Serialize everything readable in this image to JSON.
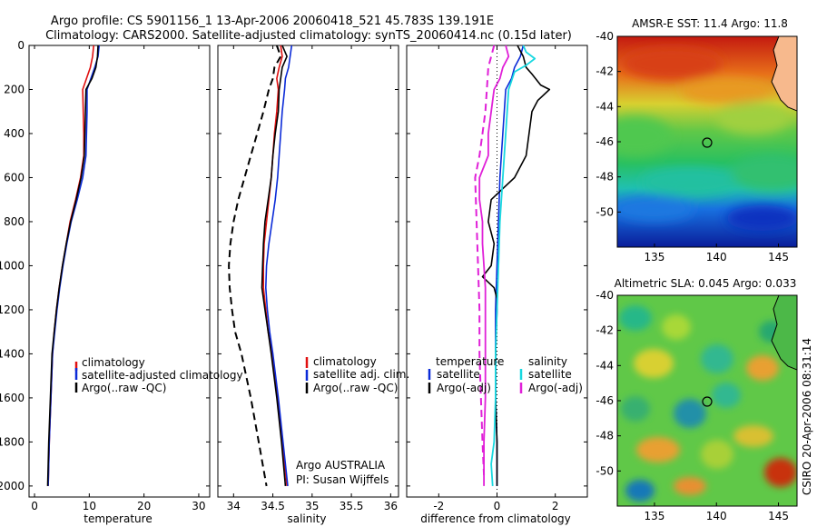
{
  "header": {
    "title_line1": "Argo profile: CS 5901156_1 13-Apr-2006 20060418_521 45.783S 139.191E",
    "title_line2": "Climatology: CARS2000. Satellite-adjusted climatology: synTS_20060414.nc (0.15d later)"
  },
  "side_label": "CSIRO 20-Apr-2006 08:31:14",
  "colors": {
    "climatology": "#e01010",
    "satellite": "#0b2bd8",
    "argo": "#000000",
    "satellite_sal": "#18d8e0",
    "argo_sal": "#e020d8"
  },
  "chart_data": [
    {
      "id": "temperature",
      "type": "line",
      "xlabel": "temperature",
      "xlim": [
        -1,
        32
      ],
      "ylim": [
        2050,
        0
      ],
      "x_ticks": [
        "0",
        "10",
        "20",
        "30"
      ],
      "y_ticks": [
        "0",
        "200",
        "400",
        "600",
        "800",
        "1000",
        "1200",
        "1400",
        "1600",
        "1800",
        "2000"
      ],
      "legend": [
        "climatology",
        "satellite-adjusted climatology",
        "Argo(..raw -QC)"
      ],
      "series": [
        {
          "name": "climatology",
          "depth": [
            0,
            50,
            100,
            150,
            200,
            300,
            400,
            500,
            600,
            700,
            800,
            900,
            1000,
            1100,
            1200,
            1300,
            1400,
            1600,
            1800,
            2000
          ],
          "values": [
            10.8,
            10.6,
            10.2,
            9.5,
            8.8,
            8.9,
            9.0,
            9.0,
            8.4,
            7.5,
            6.5,
            5.8,
            5.1,
            4.5,
            4.0,
            3.6,
            3.3,
            3.0,
            2.7,
            2.5
          ]
        },
        {
          "name": "satellite-adjusted climatology",
          "depth": [
            0,
            50,
            100,
            150,
            200,
            300,
            400,
            500,
            600,
            700,
            800,
            900,
            1000,
            1100,
            1200,
            1300,
            1400,
            1600,
            1800,
            2000
          ],
          "values": [
            11.8,
            11.6,
            11.0,
            10.3,
            9.6,
            9.6,
            9.5,
            9.4,
            8.8,
            7.8,
            6.7,
            5.9,
            5.2,
            4.6,
            4.1,
            3.7,
            3.3,
            3.0,
            2.7,
            2.5
          ]
        },
        {
          "name": "Argo(..raw -QC)",
          "depth": [
            0,
            50,
            100,
            150,
            200,
            300,
            400,
            500,
            600,
            700,
            800,
            900,
            1000,
            1100,
            1200,
            1300,
            1400,
            1600,
            1800,
            2000
          ],
          "values": [
            11.6,
            11.5,
            11.2,
            10.5,
            9.4,
            9.3,
            9.2,
            9.1,
            8.5,
            7.6,
            6.6,
            5.8,
            5.1,
            4.5,
            4.0,
            3.6,
            3.2,
            2.9,
            2.6,
            2.4
          ]
        }
      ]
    },
    {
      "id": "salinity",
      "type": "line",
      "xlabel": "salinity",
      "xlim": [
        33.8,
        36.1
      ],
      "ylim": [
        2050,
        0
      ],
      "x_ticks": [
        "34",
        "34.5",
        "35",
        "35.5",
        "36"
      ],
      "legend": [
        "climatology",
        "satellite adj. clim.",
        "Argo(..raw -QC)"
      ],
      "annotation": [
        "Argo AUSTRALIA",
        "PI: Susan Wijffels"
      ],
      "series": [
        {
          "name": "climatology",
          "depth": [
            0,
            50,
            100,
            150,
            200,
            300,
            400,
            500,
            600,
            700,
            800,
            900,
            1000,
            1100,
            1200,
            1300,
            1400,
            1600,
            1800,
            2000
          ],
          "values": [
            34.6,
            34.62,
            34.58,
            34.55,
            34.57,
            34.55,
            34.52,
            34.5,
            34.48,
            34.45,
            34.42,
            34.39,
            34.38,
            34.38,
            34.41,
            34.44,
            34.49,
            34.56,
            34.62,
            34.68
          ]
        },
        {
          "name": "satellite adj. clim.",
          "depth": [
            0,
            50,
            100,
            150,
            200,
            300,
            400,
            500,
            600,
            700,
            800,
            900,
            1000,
            1100,
            1200,
            1300,
            1400,
            1600,
            1800,
            2000
          ],
          "values": [
            34.74,
            34.72,
            34.7,
            34.66,
            34.65,
            34.62,
            34.6,
            34.58,
            34.56,
            34.53,
            34.49,
            34.45,
            34.42,
            34.41,
            34.43,
            34.46,
            34.5,
            34.57,
            34.63,
            34.69
          ]
        },
        {
          "name": "Argo(..raw -QC)",
          "depth": [
            0,
            50,
            100,
            150,
            200,
            300,
            400,
            500,
            600,
            700,
            800,
            900,
            1000,
            1100,
            1200,
            1300,
            1400,
            1600,
            1800,
            2000
          ],
          "values": [
            34.62,
            34.68,
            34.62,
            34.6,
            34.58,
            34.57,
            34.53,
            34.5,
            34.48,
            34.44,
            34.4,
            34.38,
            34.37,
            34.36,
            34.4,
            34.44,
            34.48,
            34.55,
            34.61,
            34.66
          ]
        },
        {
          "name": "Argo(-adj)",
          "depth": [
            0,
            50,
            100,
            150,
            200,
            300,
            400,
            500,
            600,
            700,
            800,
            900,
            1000,
            1100,
            1200,
            1300,
            1400,
            1600,
            1800,
            2000
          ],
          "values": [
            34.55,
            34.6,
            34.52,
            34.5,
            34.45,
            34.38,
            34.3,
            34.22,
            34.14,
            34.06,
            34.0,
            33.96,
            33.94,
            33.95,
            33.98,
            34.02,
            34.1,
            34.22,
            34.32,
            34.42
          ]
        }
      ]
    },
    {
      "id": "difference",
      "type": "line",
      "xlabel": "difference from climatology",
      "xlim": [
        -3.1,
        3.1
      ],
      "ylim": [
        2050,
        0
      ],
      "x_ticks": [
        "-2",
        "0",
        "2"
      ],
      "legend_titles": [
        "temperature",
        "salinity"
      ],
      "legend": [
        "satellite",
        "Argo(-adj)",
        "satellite",
        "Argo(-adj)"
      ],
      "series": [
        {
          "name": "temperature satellite",
          "depth": [
            0,
            50,
            100,
            150,
            200,
            400,
            600,
            800,
            1000,
            1200,
            1400,
            1600,
            1800,
            2000
          ],
          "values": [
            0.9,
            0.8,
            0.6,
            0.5,
            0.3,
            0.2,
            0.1,
            0.05,
            0.0,
            -0.05,
            -0.05,
            -0.05,
            0.0,
            0.0
          ]
        },
        {
          "name": "temperature Argo(-adj)",
          "depth": [
            0,
            50,
            100,
            130,
            180,
            200,
            250,
            300,
            400,
            500,
            600,
            650,
            700,
            800,
            900,
            1000,
            1050,
            1100,
            1150,
            1200,
            1400,
            1600,
            1800,
            2000
          ],
          "values": [
            0.7,
            0.9,
            1.0,
            1.2,
            1.5,
            1.8,
            1.4,
            1.2,
            1.1,
            1.0,
            0.6,
            0.2,
            -0.2,
            -0.3,
            -0.1,
            -0.2,
            -0.5,
            -0.1,
            0.0,
            0.0,
            -0.05,
            -0.05,
            0.0,
            0.0
          ]
        },
        {
          "name": "salinity satellite",
          "depth": [
            0,
            30,
            60,
            90,
            120,
            200,
            400,
            600,
            800,
            1000,
            1200,
            1400,
            1600,
            1800,
            1900,
            2000
          ],
          "values": [
            0.9,
            1.0,
            1.3,
            1.0,
            0.6,
            0.4,
            0.3,
            0.2,
            0.1,
            0.05,
            0.0,
            -0.05,
            -0.05,
            -0.1,
            -0.2,
            -0.15
          ]
        },
        {
          "name": "salinity Argo(-adj)",
          "depth": [
            0,
            50,
            100,
            150,
            200,
            300,
            400,
            500,
            600,
            700,
            800,
            900,
            1000,
            1100,
            1200,
            1300,
            1400,
            1600,
            1800,
            2000
          ],
          "values": [
            0.3,
            0.4,
            0.2,
            0.1,
            -0.1,
            -0.2,
            -0.3,
            -0.3,
            -0.6,
            -0.6,
            -0.5,
            -0.5,
            -0.45,
            -0.4,
            -0.4,
            -0.4,
            -0.4,
            -0.4,
            -0.45,
            -0.45
          ]
        },
        {
          "name": "salinity Argo(-adj) dashed",
          "depth": [
            0,
            50,
            100,
            200,
            300,
            400,
            500,
            600,
            800,
            1000,
            1200,
            1400,
            1600,
            1800,
            1950
          ],
          "values": [
            -0.1,
            -0.2,
            -0.3,
            -0.35,
            -0.4,
            -0.5,
            -0.6,
            -0.75,
            -0.7,
            -0.65,
            -0.6,
            -0.6,
            -0.55,
            -0.5,
            -0.45
          ]
        }
      ]
    },
    {
      "id": "amsr_sst_map",
      "type": "heatmap",
      "title": "AMSR-E SST: 11.4 Argo: 11.8",
      "x_ticks": [
        "135",
        "140",
        "145"
      ],
      "y_ticks": [
        "-40",
        "-42",
        "-44",
        "-46",
        "-48",
        "-50"
      ],
      "xlim": [
        132,
        146.5
      ],
      "ylim": [
        -52,
        -40
      ],
      "argo_point": {
        "lon": 139.191,
        "lat": -45.783
      }
    },
    {
      "id": "altimetric_sla_map",
      "type": "heatmap",
      "title": "Altimetric SLA: 0.045 Argo: 0.033",
      "x_ticks": [
        "135",
        "140",
        "145"
      ],
      "y_ticks": [
        "-40",
        "-42",
        "-44",
        "-46",
        "-48",
        "-50"
      ],
      "xlim": [
        132,
        146.5
      ],
      "ylim": [
        -52,
        -40
      ],
      "argo_point": {
        "lon": 139.191,
        "lat": -45.783
      }
    }
  ]
}
